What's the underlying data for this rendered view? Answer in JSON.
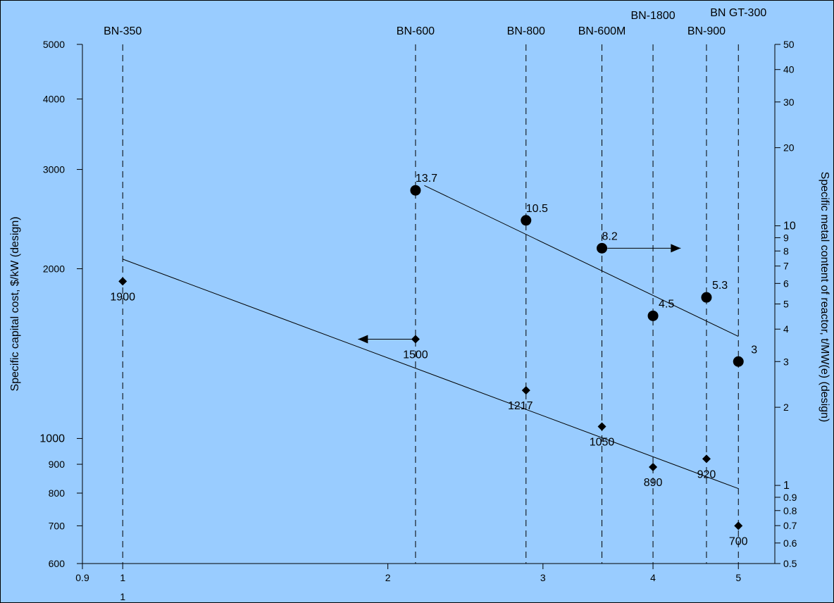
{
  "chart_data": {
    "type": "scatter",
    "background": "#99ccff",
    "border_color": "#000000",
    "reactors": [
      {
        "name": "BN-350",
        "x": 1.0
      },
      {
        "name": "BN-600",
        "x": 2.15
      },
      {
        "name": "BN-800",
        "x": 2.87
      },
      {
        "name": "BN-600M",
        "x": 3.5
      },
      {
        "name": "BN-1800",
        "x": 4.0
      },
      {
        "name": "BN-900",
        "x": 4.6
      },
      {
        "name": "BN GT-300",
        "x": 5.0
      }
    ],
    "x_axis": {
      "scale": "log",
      "range": [
        0.9,
        5.5
      ],
      "ticks": [
        "0.9",
        "1",
        "2",
        "3",
        "4",
        "5"
      ],
      "tick_values": [
        0.9,
        1,
        2,
        3,
        4,
        5
      ]
    },
    "y_left": {
      "label": "Specific capital cost, $/kW (design)",
      "scale": "log",
      "range": [
        600,
        5000
      ],
      "ticks": [
        "600",
        "700",
        "800",
        "900",
        "1000",
        "2000",
        "3000",
        "4000",
        "5000"
      ],
      "tick_values": [
        600,
        700,
        800,
        900,
        1000,
        2000,
        3000,
        4000,
        5000
      ]
    },
    "y_right": {
      "label": "Specific metal content of reactor, t/MW(e) (design)",
      "scale": "log",
      "range": [
        0.5,
        50
      ],
      "ticks": [
        "0.5",
        "0.6",
        "0.7",
        "0.8",
        "0.9",
        "1",
        "2",
        "3",
        "4",
        "5",
        "6",
        "7",
        "8",
        "9",
        "10",
        "20",
        "30",
        "40",
        "50"
      ],
      "tick_values": [
        0.5,
        0.6,
        0.7,
        0.8,
        0.9,
        1,
        2,
        3,
        4,
        5,
        6,
        7,
        8,
        9,
        10,
        20,
        30,
        40,
        50
      ]
    },
    "series": [
      {
        "marker": "diamond",
        "axis": "left",
        "points": [
          {
            "x": 1.0,
            "y": 1900,
            "label": "1900"
          },
          {
            "x": 2.15,
            "y": 1500,
            "label": "1500"
          },
          {
            "x": 2.87,
            "y": 1217,
            "label": "1217"
          },
          {
            "x": 3.5,
            "y": 1050,
            "label": "1050"
          },
          {
            "x": 4.0,
            "y": 890,
            "label": "890"
          },
          {
            "x": 4.6,
            "y": 920,
            "label": "920"
          },
          {
            "x": 5.0,
            "y": 700,
            "label": "700"
          }
        ],
        "trend": [
          {
            "x": 1.0,
            "y": 2080
          },
          {
            "x": 5.0,
            "y": 815
          }
        ]
      },
      {
        "marker": "circle",
        "axis": "right",
        "points": [
          {
            "x": 2.15,
            "y": 13.7,
            "label": "13.7"
          },
          {
            "x": 2.87,
            "y": 10.5,
            "label": "10.5"
          },
          {
            "x": 3.5,
            "y": 8.2,
            "label": "8.2"
          },
          {
            "x": 4.0,
            "y": 4.5,
            "label": "4.5"
          },
          {
            "x": 4.6,
            "y": 5.3,
            "label": "5.3"
          },
          {
            "x": 5.0,
            "y": 3,
            "label": "3"
          }
        ],
        "trend": [
          {
            "x": 2.2,
            "y": 14.3
          },
          {
            "x": 5.0,
            "y": 3.75
          }
        ]
      }
    ],
    "annotations": [
      {
        "type": "arrow",
        "points_to": "left",
        "from": {
          "x": 2.15,
          "y": 1500
        },
        "to": {
          "x": 1.85,
          "y": 1500
        }
      },
      {
        "type": "arrow",
        "points_to": "right",
        "from": {
          "x": 3.55,
          "y": 8.2
        },
        "to": {
          "x": 4.3,
          "y": 8.2
        }
      }
    ]
  }
}
